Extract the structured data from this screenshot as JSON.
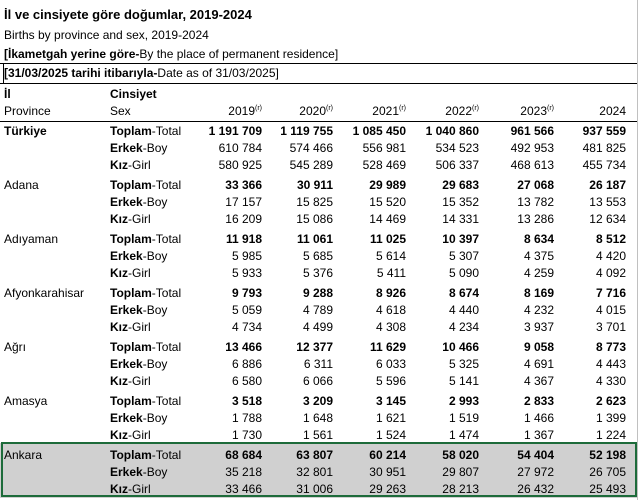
{
  "title_tr": "İl ve cinsiyete göre doğumlar, 2019-2024",
  "title_en": "Births by province and sex, 2019-2024",
  "note1_bold": "[İkametgah yerine göre-",
  "note1_rest": "By the place of permanent residence]",
  "note2_bold": "[31/03/2025 tarihi itibarıyla-",
  "note2_rest": "Date as of 31/03/2025]",
  "header": {
    "il": "İl",
    "province": "Province",
    "cinsiyet": "Cinsiyet",
    "sex": "Sex",
    "years": [
      "2019",
      "2020",
      "2021",
      "2022",
      "2023",
      "2024"
    ],
    "sup": "(r)"
  },
  "sex_labels": {
    "total_bold": "Toplam",
    "total_rest": "-Total",
    "boy_bold": "Erkek",
    "boy_rest": "-Boy",
    "girl_bold": "Kız",
    "girl_rest": "-Girl"
  },
  "provinces": [
    {
      "name": "Türkiye",
      "total": [
        "1 191 709",
        "1 119 755",
        "1 085 450",
        "1 040 860",
        "961 566",
        "937 559"
      ],
      "boy": [
        "610 784",
        "574 466",
        "556 981",
        "534 523",
        "492 953",
        "481 825"
      ],
      "girl": [
        "580 925",
        "545 289",
        "528 469",
        "506 337",
        "468 613",
        "455 734"
      ]
    },
    {
      "name": "Adana",
      "total": [
        "33 366",
        "30 911",
        "29 989",
        "29 683",
        "27 068",
        "26 187"
      ],
      "boy": [
        "17 157",
        "15 825",
        "15 520",
        "15 352",
        "13 782",
        "13 553"
      ],
      "girl": [
        "16 209",
        "15 086",
        "14 469",
        "14 331",
        "13 286",
        "12 634"
      ]
    },
    {
      "name": "Adıyaman",
      "total": [
        "11 918",
        "11 061",
        "11 025",
        "10 397",
        "8 634",
        "8 512"
      ],
      "boy": [
        "5 985",
        "5 685",
        "5 614",
        "5 307",
        "4 375",
        "4 420"
      ],
      "girl": [
        "5 933",
        "5 376",
        "5 411",
        "5 090",
        "4 259",
        "4 092"
      ]
    },
    {
      "name": "Afyonkarahisar",
      "total": [
        "9 793",
        "9 288",
        "8 926",
        "8 674",
        "8 169",
        "7 716"
      ],
      "boy": [
        "5 059",
        "4 789",
        "4 618",
        "4 440",
        "4 232",
        "4 015"
      ],
      "girl": [
        "4 734",
        "4 499",
        "4 308",
        "4 234",
        "3 937",
        "3 701"
      ]
    },
    {
      "name": "Ağrı",
      "total": [
        "13 466",
        "12 377",
        "11 629",
        "10 466",
        "9 058",
        "8 773"
      ],
      "boy": [
        "6 886",
        "6 311",
        "6 033",
        "5 325",
        "4 691",
        "4 443"
      ],
      "girl": [
        "6 580",
        "6 066",
        "5 596",
        "5 141",
        "4 367",
        "4 330"
      ]
    },
    {
      "name": "Amasya",
      "total": [
        "3 518",
        "3 209",
        "3 145",
        "2 993",
        "2 833",
        "2 623"
      ],
      "boy": [
        "1 788",
        "1 648",
        "1 621",
        "1 519",
        "1 466",
        "1 399"
      ],
      "girl": [
        "1 730",
        "1 561",
        "1 524",
        "1 474",
        "1 367",
        "1 224"
      ]
    },
    {
      "name": "Ankara",
      "total": [
        "68 684",
        "63 807",
        "60 214",
        "58 020",
        "54 404",
        "52 198"
      ],
      "boy": [
        "35 218",
        "32 801",
        "30 951",
        "29 807",
        "27 972",
        "26 705"
      ],
      "girl": [
        "33 466",
        "31 006",
        "29 263",
        "28 213",
        "26 432",
        "25 493"
      ]
    }
  ],
  "colors": {
    "selection_fill": "#d0d0d0",
    "selection_border": "#1d6b3a"
  }
}
